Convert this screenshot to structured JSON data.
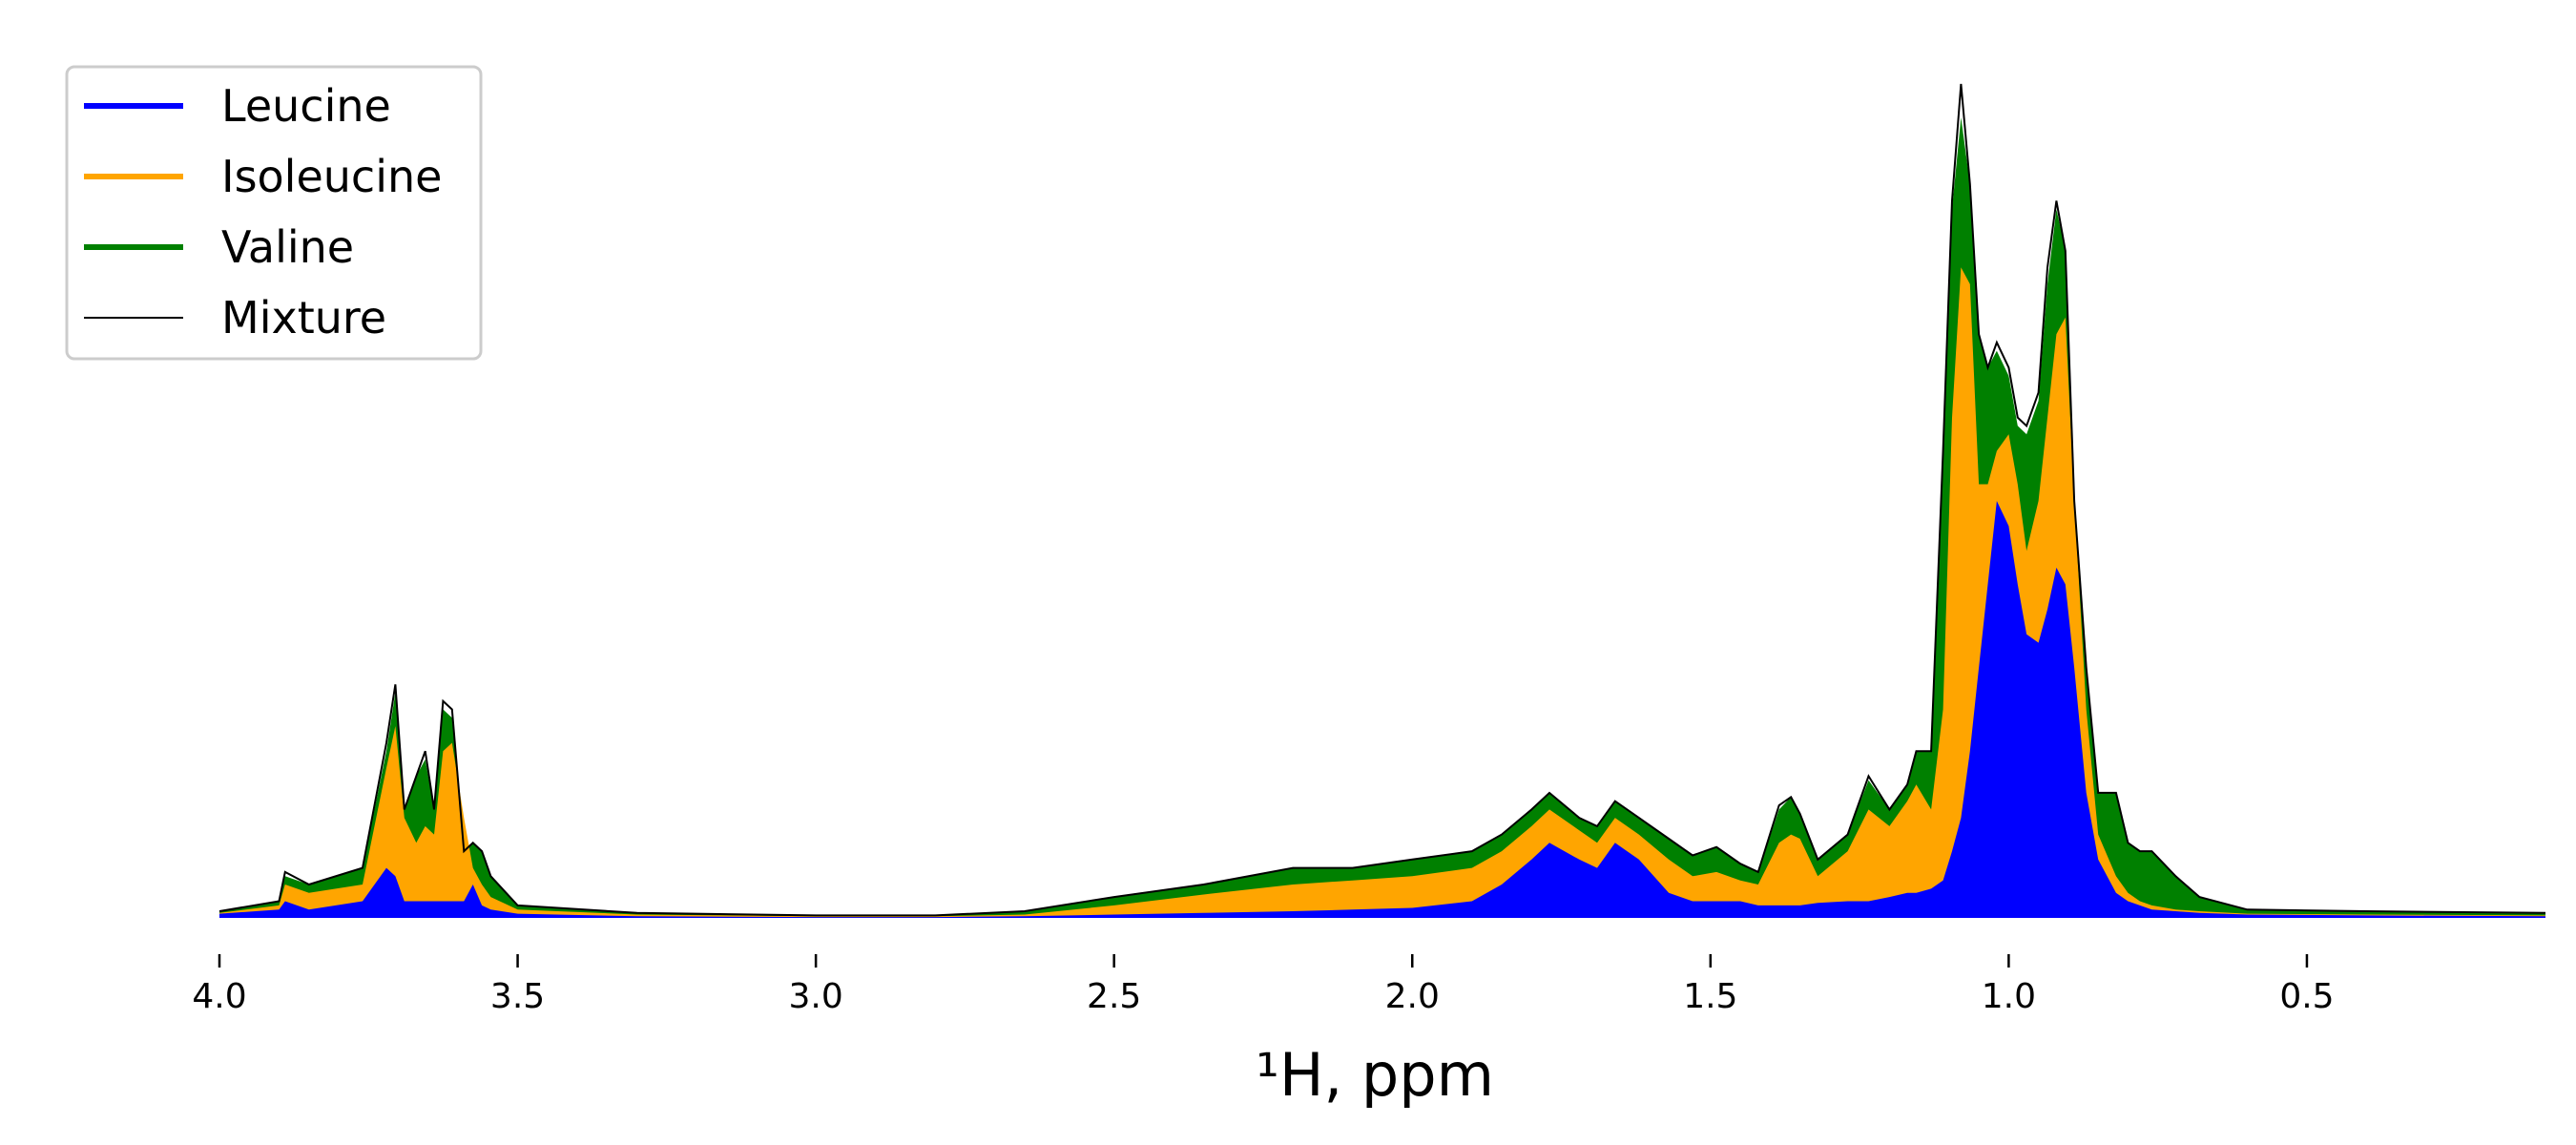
{
  "chart_data": {
    "type": "area",
    "xlabel": "¹H, ppm",
    "ylabel": "",
    "xlim": [
      4.0,
      0.1
    ],
    "x_reversed": true,
    "ylim": [
      0,
      1.0
    ],
    "grid": false,
    "legend_position": "top-left",
    "x_ticks": [
      "4.0",
      "3.5",
      "3.0",
      "2.5",
      "2.0",
      "1.5",
      "1.0",
      "0.5"
    ],
    "x_tick_values": [
      4.0,
      3.5,
      3.0,
      2.5,
      2.0,
      1.5,
      1.0,
      0.5
    ],
    "series": [
      {
        "name": "Leucine",
        "color": "#0000ff",
        "style": "filled-stack-bottom"
      },
      {
        "name": "Isoleucine",
        "color": "#ffa500",
        "style": "filled-stack-middle"
      },
      {
        "name": "Valine",
        "color": "#008000",
        "style": "filled-stack-top"
      },
      {
        "name": "Mixture",
        "color": "#000000",
        "style": "thin-line"
      }
    ],
    "stack_cumulative": {
      "x": [
        4.0,
        3.9,
        3.89,
        3.85,
        3.76,
        3.72,
        3.705,
        3.69,
        3.67,
        3.655,
        3.64,
        3.625,
        3.61,
        3.59,
        3.575,
        3.56,
        3.545,
        3.5,
        3.3,
        3.0,
        2.8,
        2.65,
        2.5,
        2.35,
        2.2,
        2.1,
        2.0,
        1.9,
        1.85,
        1.8,
        1.77,
        1.72,
        1.69,
        1.66,
        1.62,
        1.57,
        1.53,
        1.49,
        1.45,
        1.42,
        1.385,
        1.365,
        1.35,
        1.32,
        1.27,
        1.235,
        1.2,
        1.17,
        1.155,
        1.13,
        1.11,
        1.095,
        1.08,
        1.065,
        1.05,
        1.035,
        1.02,
        1.0,
        0.985,
        0.97,
        0.95,
        0.935,
        0.92,
        0.905,
        0.89,
        0.87,
        0.85,
        0.82,
        0.8,
        0.78,
        0.76,
        0.72,
        0.68,
        0.6,
        0.4,
        0.1
      ],
      "leucine": [
        0.005,
        0.01,
        0.02,
        0.01,
        0.02,
        0.06,
        0.05,
        0.02,
        0.02,
        0.02,
        0.02,
        0.02,
        0.02,
        0.02,
        0.04,
        0.015,
        0.01,
        0.005,
        0.002,
        0.001,
        0.001,
        0.002,
        0.004,
        0.006,
        0.008,
        0.01,
        0.012,
        0.02,
        0.04,
        0.07,
        0.09,
        0.07,
        0.06,
        0.09,
        0.07,
        0.03,
        0.02,
        0.02,
        0.02,
        0.015,
        0.015,
        0.015,
        0.015,
        0.018,
        0.02,
        0.02,
        0.025,
        0.03,
        0.03,
        0.035,
        0.045,
        0.08,
        0.12,
        0.2,
        0.3,
        0.4,
        0.5,
        0.47,
        0.4,
        0.34,
        0.33,
        0.37,
        0.42,
        0.4,
        0.3,
        0.15,
        0.07,
        0.03,
        0.02,
        0.015,
        0.01,
        0.008,
        0.006,
        0.004,
        0.003,
        0.002
      ],
      "isoleucine": [
        0.006,
        0.015,
        0.04,
        0.03,
        0.04,
        0.18,
        0.23,
        0.12,
        0.09,
        0.11,
        0.1,
        0.2,
        0.21,
        0.12,
        0.06,
        0.04,
        0.025,
        0.01,
        0.004,
        0.002,
        0.002,
        0.004,
        0.015,
        0.028,
        0.04,
        0.045,
        0.05,
        0.06,
        0.08,
        0.11,
        0.13,
        0.105,
        0.09,
        0.12,
        0.1,
        0.07,
        0.05,
        0.055,
        0.045,
        0.04,
        0.09,
        0.1,
        0.095,
        0.05,
        0.08,
        0.13,
        0.11,
        0.14,
        0.16,
        0.13,
        0.25,
        0.6,
        0.78,
        0.76,
        0.52,
        0.52,
        0.56,
        0.58,
        0.52,
        0.44,
        0.5,
        0.6,
        0.7,
        0.72,
        0.5,
        0.25,
        0.1,
        0.05,
        0.03,
        0.02,
        0.015,
        0.01,
        0.008,
        0.005,
        0.004,
        0.003
      ],
      "valine": [
        0.008,
        0.02,
        0.05,
        0.04,
        0.06,
        0.2,
        0.27,
        0.13,
        0.17,
        0.19,
        0.13,
        0.25,
        0.24,
        0.08,
        0.09,
        0.08,
        0.05,
        0.015,
        0.006,
        0.003,
        0.003,
        0.008,
        0.025,
        0.04,
        0.06,
        0.06,
        0.07,
        0.08,
        0.1,
        0.13,
        0.15,
        0.12,
        0.11,
        0.14,
        0.12,
        0.095,
        0.075,
        0.085,
        0.065,
        0.055,
        0.13,
        0.145,
        0.125,
        0.07,
        0.1,
        0.165,
        0.13,
        0.16,
        0.2,
        0.2,
        0.55,
        0.85,
        0.96,
        0.88,
        0.7,
        0.66,
        0.68,
        0.65,
        0.59,
        0.58,
        0.62,
        0.76,
        0.85,
        0.8,
        0.5,
        0.3,
        0.15,
        0.15,
        0.09,
        0.08,
        0.08,
        0.05,
        0.025,
        0.01,
        0.008,
        0.006
      ],
      "mixture": [
        0.008,
        0.02,
        0.055,
        0.04,
        0.06,
        0.21,
        0.28,
        0.13,
        0.17,
        0.2,
        0.13,
        0.26,
        0.25,
        0.08,
        0.09,
        0.08,
        0.05,
        0.015,
        0.006,
        0.003,
        0.003,
        0.008,
        0.025,
        0.04,
        0.06,
        0.06,
        0.07,
        0.08,
        0.1,
        0.13,
        0.15,
        0.12,
        0.11,
        0.14,
        0.12,
        0.095,
        0.075,
        0.085,
        0.065,
        0.055,
        0.135,
        0.145,
        0.125,
        0.07,
        0.1,
        0.17,
        0.13,
        0.16,
        0.2,
        0.2,
        0.56,
        0.86,
        1.0,
        0.88,
        0.7,
        0.66,
        0.69,
        0.66,
        0.6,
        0.59,
        0.63,
        0.78,
        0.86,
        0.8,
        0.5,
        0.3,
        0.15,
        0.15,
        0.09,
        0.08,
        0.08,
        0.05,
        0.025,
        0.01,
        0.008,
        0.006
      ]
    }
  }
}
